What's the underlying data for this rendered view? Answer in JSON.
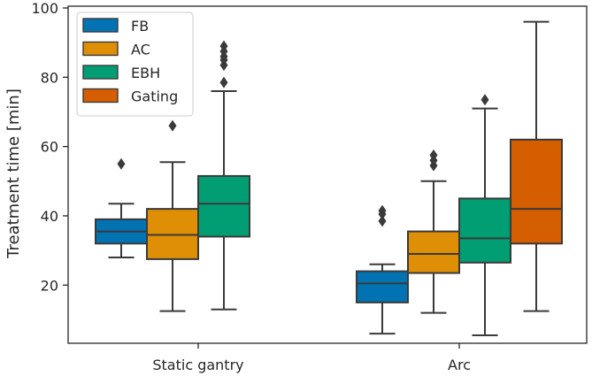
{
  "chart_data": {
    "type": "boxplot",
    "title": "",
    "xlabel": "",
    "ylabel": "Treatment time [min]",
    "ylim": [
      0,
      100
    ],
    "yticks": [
      20,
      40,
      60,
      80,
      100
    ],
    "categories": [
      "Static gantry",
      "Arc"
    ],
    "legend": {
      "placement": "top-left",
      "entries": [
        "FB",
        "AC",
        "EBH",
        "Gating"
      ]
    },
    "series": [
      {
        "name": "FB",
        "color": "#0173b2",
        "boxes": [
          {
            "category": "Static gantry",
            "whisker_low": 28,
            "q1": 32,
            "median": 35.5,
            "q3": 39,
            "whisker_high": 43.5,
            "outliers": [
              55
            ]
          },
          {
            "category": "Arc",
            "whisker_low": 6,
            "q1": 15,
            "median": 20.5,
            "q3": 24,
            "whisker_high": 26,
            "outliers": [
              38.5,
              40.5,
              41.5
            ]
          }
        ]
      },
      {
        "name": "AC",
        "color": "#de8f05",
        "boxes": [
          {
            "category": "Static gantry",
            "whisker_low": 12.5,
            "q1": 27.5,
            "median": 34.5,
            "q3": 42,
            "whisker_high": 55.5,
            "outliers": [
              66
            ]
          },
          {
            "category": "Arc",
            "whisker_low": 12,
            "q1": 23.5,
            "median": 29,
            "q3": 35.5,
            "whisker_high": 50,
            "outliers": [
              54.5,
              56,
              57.5
            ]
          }
        ]
      },
      {
        "name": "EBH",
        "color": "#029e73",
        "boxes": [
          {
            "category": "Static gantry",
            "whisker_low": 13,
            "q1": 34,
            "median": 43.5,
            "q3": 51.5,
            "whisker_high": 76,
            "outliers": [
              78.5,
              83.5,
              85,
              86,
              87.5,
              89
            ]
          },
          {
            "category": "Arc",
            "whisker_low": 5.5,
            "q1": 26.5,
            "median": 33.5,
            "q3": 45,
            "whisker_high": 71,
            "outliers": [
              73.5
            ]
          }
        ]
      },
      {
        "name": "Gating",
        "color": "#d55e00",
        "boxes": [
          {
            "category": "Static gantry",
            "whisker_low": null,
            "q1": null,
            "median": null,
            "q3": null,
            "whisker_high": null,
            "outliers": []
          },
          {
            "category": "Arc",
            "whisker_low": 12.5,
            "q1": 32,
            "median": 42,
            "q3": 62,
            "whisker_high": 96,
            "outliers": []
          }
        ]
      }
    ]
  }
}
